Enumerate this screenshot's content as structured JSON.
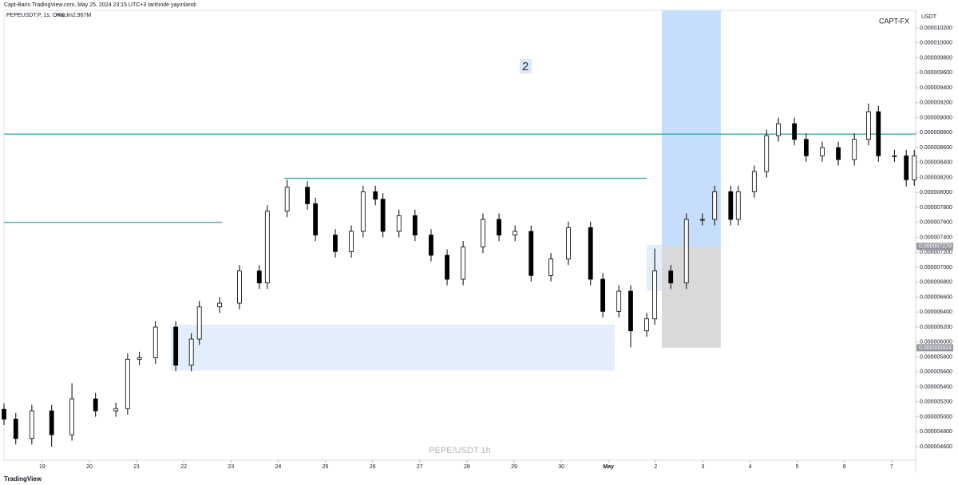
{
  "header": {
    "caption": "Capt-Baris TradingView.com, May 25, 2024 23:15 UTC+3 tarihinde yayınlandı",
    "symbol": "PEPEUSDT.P, 1s, OKX",
    "volume": "Hacim2.967M",
    "footer": "TradingView"
  },
  "chart_data": {
    "type": "candlestick",
    "watermark": "PEPE/USDT 1h",
    "brand": "CAPT-FX",
    "y_unit": "USDT",
    "annotation": "2",
    "up_color": "#ffffff",
    "down_color": "#000000",
    "wick_color": "#000000",
    "x": [
      -0.81,
      -0.56,
      -0.22,
      0.2,
      0.63,
      1.13,
      1.56,
      1.81,
      2.06,
      2.4,
      2.83,
      3.16,
      3.33,
      3.76,
      4.18,
      4.6,
      4.77,
      5.19,
      5.62,
      5.79,
      6.21,
      6.55,
      6.8,
      7.06,
      7.22,
      7.56,
      7.9,
      8.24,
      8.58,
      8.92,
      9.34,
      9.68,
      10.02,
      10.36,
      10.78,
      11.15,
      11.62,
      11.88,
      12.22,
      12.47,
      12.81,
      12.98,
      13.32,
      13.65,
      13.99,
      14.25,
      14.59,
      14.75,
      15.09,
      15.35,
      15.6,
      15.94,
      16.19,
      16.53,
      16.87,
      17.21,
      17.51,
      17.72,
      18.06,
      18.31,
      18.48
    ],
    "open": [
      5.1e-06,
      4.97e-06,
      4.71e-06,
      5.08e-06,
      4.76e-06,
      5.24e-06,
      5.08e-06,
      5.11e-06,
      5.77e-06,
      5.79e-06,
      6.2e-06,
      5.69e-06,
      6.04e-06,
      6.47e-06,
      6.52e-06,
      6.95e-06,
      6.79e-06,
      7.75e-06,
      8.07e-06,
      7.85e-06,
      7.43e-06,
      7.21e-06,
      7.48e-06,
      8.01e-06,
      7.91e-06,
      7.48e-06,
      7.69e-06,
      7.43e-06,
      7.16e-06,
      6.84e-06,
      7.27e-06,
      7.64e-06,
      7.43e-06,
      7.48e-06,
      6.89e-06,
      7.11e-06,
      7.53e-06,
      6.84e-06,
      6.41e-06,
      6.68e-06,
      6.15e-06,
      6.31e-06,
      6.95e-06,
      6.79e-06,
      7.64e-06,
      7.64e-06,
      8.01e-06,
      7.64e-06,
      8.01e-06,
      8.28e-06,
      8.76e-06,
      8.92e-06,
      8.71e-06,
      8.49e-06,
      8.6e-06,
      8.44e-06,
      8.71e-06,
      9.08e-06,
      8.49e-06,
      8.49e-06,
      8.17e-06
    ],
    "high": [
      5.18e-06,
      5.05e-06,
      5.16e-06,
      5.16e-06,
      5.45e-06,
      5.32e-06,
      5.19e-06,
      5.85e-06,
      5.87e-06,
      6.28e-06,
      6.28e-06,
      6.12e-06,
      6.55e-06,
      6.6e-06,
      7.03e-06,
      7.03e-06,
      7.83e-06,
      8.17e-06,
      8.15e-06,
      7.93e-06,
      7.51e-06,
      7.56e-06,
      8.09e-06,
      8.09e-06,
      7.99e-06,
      7.77e-06,
      7.77e-06,
      7.51e-06,
      7.24e-06,
      7.35e-06,
      7.72e-06,
      7.72e-06,
      7.56e-06,
      7.56e-06,
      7.19e-06,
      7.61e-06,
      7.61e-06,
      6.92e-06,
      6.76e-06,
      6.76e-06,
      6.39e-06,
      7.25e-06,
      7.03e-06,
      7.72e-06,
      7.72e-06,
      8.09e-06,
      8.09e-06,
      8.09e-06,
      8.36e-06,
      8.84e-06,
      9e-06,
      9e-06,
      8.79e-06,
      8.68e-06,
      8.68e-06,
      8.79e-06,
      9.19e-06,
      9.16e-06,
      8.57e-06,
      8.57e-06,
      8.57e-06
    ],
    "low": [
      4.89e-06,
      4.63e-06,
      4.63e-06,
      4.6e-06,
      4.68e-06,
      5e-06,
      5e-06,
      5.03e-06,
      5.69e-06,
      5.71e-06,
      5.61e-06,
      5.61e-06,
      5.96e-06,
      6.39e-06,
      6.44e-06,
      6.71e-06,
      6.71e-06,
      7.67e-06,
      7.77e-06,
      7.35e-06,
      7.13e-06,
      7.13e-06,
      7.4e-06,
      7.83e-06,
      7.4e-06,
      7.4e-06,
      7.35e-06,
      7.08e-06,
      6.76e-06,
      6.76e-06,
      7.19e-06,
      7.35e-06,
      7.35e-06,
      6.81e-06,
      6.81e-06,
      7.03e-06,
      6.76e-06,
      6.33e-06,
      6.33e-06,
      5.93e-06,
      6.07e-06,
      6.23e-06,
      6.71e-06,
      6.71e-06,
      7.56e-06,
      7.56e-06,
      7.56e-06,
      7.56e-06,
      7.93e-06,
      8.2e-06,
      8.68e-06,
      8.63e-06,
      8.41e-06,
      8.41e-06,
      8.36e-06,
      8.36e-06,
      8.63e-06,
      8.41e-06,
      8.41e-06,
      8.08e-06,
      8.09e-06
    ],
    "close": [
      4.97e-06,
      4.71e-06,
      5.08e-06,
      4.76e-06,
      5.24e-06,
      5.08e-06,
      5.11e-06,
      5.77e-06,
      5.79e-06,
      6.2e-06,
      5.69e-06,
      6.04e-06,
      6.47e-06,
      6.52e-06,
      6.95e-06,
      6.79e-06,
      7.75e-06,
      8.07e-06,
      7.85e-06,
      7.43e-06,
      7.21e-06,
      7.48e-06,
      8.01e-06,
      7.91e-06,
      7.48e-06,
      7.69e-06,
      7.43e-06,
      7.16e-06,
      6.84e-06,
      7.27e-06,
      7.64e-06,
      7.43e-06,
      7.48e-06,
      6.89e-06,
      7.11e-06,
      7.53e-06,
      6.84e-06,
      6.41e-06,
      6.68e-06,
      6.15e-06,
      6.31e-06,
      6.95e-06,
      6.79e-06,
      7.64e-06,
      7.64e-06,
      8.01e-06,
      7.64e-06,
      8.01e-06,
      8.28e-06,
      8.76e-06,
      8.92e-06,
      8.71e-06,
      8.49e-06,
      8.6e-06,
      8.44e-06,
      8.71e-06,
      9.08e-06,
      8.49e-06,
      8.49e-06,
      8.17e-06,
      8.49e-06
    ],
    "xlim": [
      -0.81,
      18.51
    ],
    "xticks": [
      {
        "value": 0,
        "label": "19"
      },
      {
        "value": 1,
        "label": "20"
      },
      {
        "value": 2,
        "label": "21"
      },
      {
        "value": 3,
        "label": "22"
      },
      {
        "value": 4,
        "label": "23"
      },
      {
        "value": 5,
        "label": "24"
      },
      {
        "value": 6,
        "label": "25"
      },
      {
        "value": 7,
        "label": "26"
      },
      {
        "value": 8,
        "label": "27"
      },
      {
        "value": 9,
        "label": "28"
      },
      {
        "value": 10,
        "label": "29"
      },
      {
        "value": 11,
        "label": "30"
      },
      {
        "value": 12,
        "label": "May"
      },
      {
        "value": 13,
        "label": "2"
      },
      {
        "value": 14,
        "label": "3"
      },
      {
        "value": 15,
        "label": "4"
      },
      {
        "value": 16,
        "label": "5"
      },
      {
        "value": 17,
        "label": "6"
      },
      {
        "value": 18,
        "label": "7"
      }
    ],
    "ylim": [
      4.419e-06,
      1.0435e-05
    ],
    "yticks": [
      {
        "value": 4.6e-06,
        "label": "0.000004600"
      },
      {
        "value": 4.8e-06,
        "label": "0.000004800"
      },
      {
        "value": 5e-06,
        "label": "0.000005000"
      },
      {
        "value": 5.2e-06,
        "label": "0.000005200"
      },
      {
        "value": 5.4e-06,
        "label": "0.000005400"
      },
      {
        "value": 5.6e-06,
        "label": "0.000005600"
      },
      {
        "value": 5.8e-06,
        "label": "0.000005800"
      },
      {
        "value": 6e-06,
        "label": "0.000006000"
      },
      {
        "value": 6.2e-06,
        "label": "0.000006200"
      },
      {
        "value": 6.4e-06,
        "label": "0.000006400"
      },
      {
        "value": 6.6e-06,
        "label": "0.000006600"
      },
      {
        "value": 6.8e-06,
        "label": "0.000006800"
      },
      {
        "value": 7e-06,
        "label": "0.000007000"
      },
      {
        "value": 7.2e-06,
        "label": "0.000007200"
      },
      {
        "value": 7.4e-06,
        "label": "0.000007400"
      },
      {
        "value": 7.6e-06,
        "label": "0.000007600"
      },
      {
        "value": 7.8e-06,
        "label": "0.000007800"
      },
      {
        "value": 8e-06,
        "label": "0.000008000"
      },
      {
        "value": 8.2e-06,
        "label": "0.000008200"
      },
      {
        "value": 8.4e-06,
        "label": "0.000008400"
      },
      {
        "value": 8.6e-06,
        "label": "0.000008600"
      },
      {
        "value": 8.8e-06,
        "label": "0.000008800"
      },
      {
        "value": 9e-06,
        "label": "0.000009000"
      },
      {
        "value": 9.2e-06,
        "label": "0.000009200"
      },
      {
        "value": 9.4e-06,
        "label": "0.000009400"
      },
      {
        "value": 9.6e-06,
        "label": "0.000009600"
      },
      {
        "value": 9.8e-06,
        "label": "0.000009800"
      },
      {
        "value": 1e-05,
        "label": "0.000010000"
      },
      {
        "value": 1.02e-05,
        "label": "0.000010200"
      }
    ],
    "price_labels": [
      {
        "value": 7.279e-06,
        "label": "0.000007279"
      },
      {
        "value": 5.924e-06,
        "label": "0.000005924"
      }
    ],
    "levels": [
      {
        "value": 8.78e-06,
        "x": [
          -0.81,
          18.51
        ]
      },
      {
        "value": 8.19e-06,
        "x": [
          5.13,
          12.81
        ]
      },
      {
        "value": 7.6e-06,
        "x": [
          -0.81,
          3.81
        ]
      }
    ],
    "level_color": "#26a69a",
    "zones": [
      {
        "x": [
          2.72,
          12.13
        ],
        "y": [
          5.62e-06,
          6.23e-06
        ],
        "color": "#e3eefc"
      },
      {
        "x": [
          12.81,
          13.49
        ],
        "y": [
          6.68e-06,
          7.3e-06
        ],
        "color": "#e3eefc"
      },
      {
        "x": [
          13.13,
          14.38
        ],
        "y": [
          7.279e-06,
          1.0435e-05
        ],
        "color": "#c6ddfb"
      },
      {
        "x": [
          13.13,
          14.38
        ],
        "y": [
          5.924e-06,
          7.279e-06
        ],
        "color": "#d9d9db"
      }
    ]
  }
}
